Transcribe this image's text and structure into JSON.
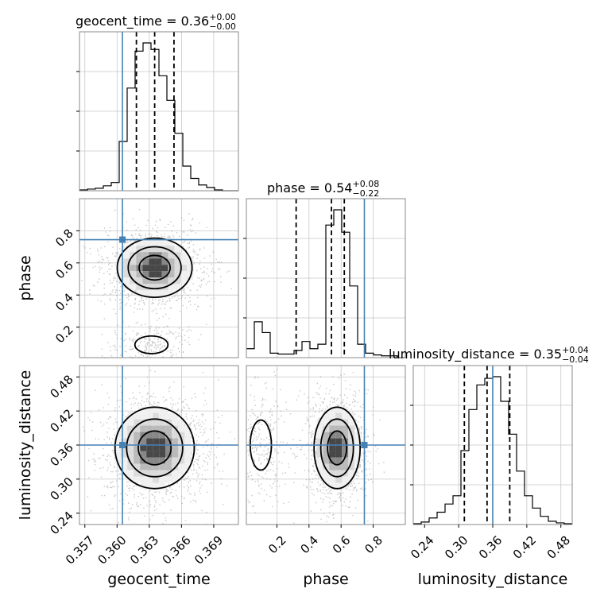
{
  "chart_data": {
    "type": "corner",
    "parameters": [
      "geocent_time",
      "phase",
      "luminosity_distance"
    ],
    "axis_labels": {
      "x": [
        "geocent_time",
        "phase",
        "luminosity_distance"
      ],
      "y": [
        "phase",
        "luminosity_distance"
      ]
    },
    "ranges": {
      "geocent_time": [
        0.3565,
        0.3713
      ],
      "phase": [
        0.01,
        1.0
      ],
      "luminosity_distance": [
        0.22,
        0.5
      ]
    },
    "ticks": {
      "geocent_time": [
        0.357,
        0.36,
        0.363,
        0.366,
        0.369
      ],
      "geocent_time_labels": [
        "0.357",
        "0.360",
        "0.363",
        "0.366",
        "0.369"
      ],
      "phase": [
        0.2,
        0.4,
        0.6,
        0.8
      ],
      "phase_labels": [
        "0.2",
        "0.4",
        "0.6",
        "0.8"
      ],
      "luminosity_distance": [
        0.24,
        0.3,
        0.36,
        0.42,
        0.48
      ],
      "luminosity_distance_labels": [
        "0.24",
        "0.30",
        "0.36",
        "0.42",
        "0.48"
      ]
    },
    "truths": {
      "geocent_time": 0.3605,
      "phase": 0.745,
      "luminosity_distance": 0.36
    },
    "quantiles": {
      "geocent_time": [
        0.3618,
        0.3635,
        0.3653
      ],
      "phase": [
        0.32,
        0.54,
        0.62
      ],
      "luminosity_distance": [
        0.31,
        0.35,
        0.39
      ]
    },
    "titles": [
      {
        "param": "geocent_time",
        "main": "geocent_time = 0.36",
        "plus": "+0.00",
        "minus": "−0.00"
      },
      {
        "param": "phase",
        "main": "phase = 0.54",
        "plus": "+0.08",
        "minus": "−0.22"
      },
      {
        "param": "luminosity_distance",
        "main": "luminosity_distance = 0.35",
        "plus": "+0.04",
        "minus": "−0.04"
      }
    ],
    "histograms": {
      "geocent_time": {
        "edges_start": 0.3565,
        "edges_end": 0.3713,
        "counts": [
          1,
          2,
          3,
          6,
          10,
          60,
          125,
          170,
          180,
          172,
          140,
          110,
          70,
          30,
          15,
          7,
          4,
          1,
          0,
          0
        ]
      },
      "phase": {
        "edges_start": 0.01,
        "edges_end": 1.0,
        "counts": [
          10,
          40,
          28,
          5,
          4,
          4,
          8,
          18,
          10,
          15,
          148,
          165,
          140,
          80,
          15,
          5,
          3,
          2,
          2,
          0
        ]
      },
      "luminosity_distance": {
        "edges_start": 0.22,
        "edges_end": 0.5,
        "counts": [
          1,
          3,
          8,
          15,
          25,
          35,
          90,
          140,
          170,
          178,
          180,
          150,
          110,
          65,
          35,
          20,
          10,
          4,
          2,
          1
        ]
      }
    },
    "grid": true,
    "color_truth": "#4682b4",
    "color_scatter": "#9a9a9a",
    "color_line": "#000000"
  }
}
